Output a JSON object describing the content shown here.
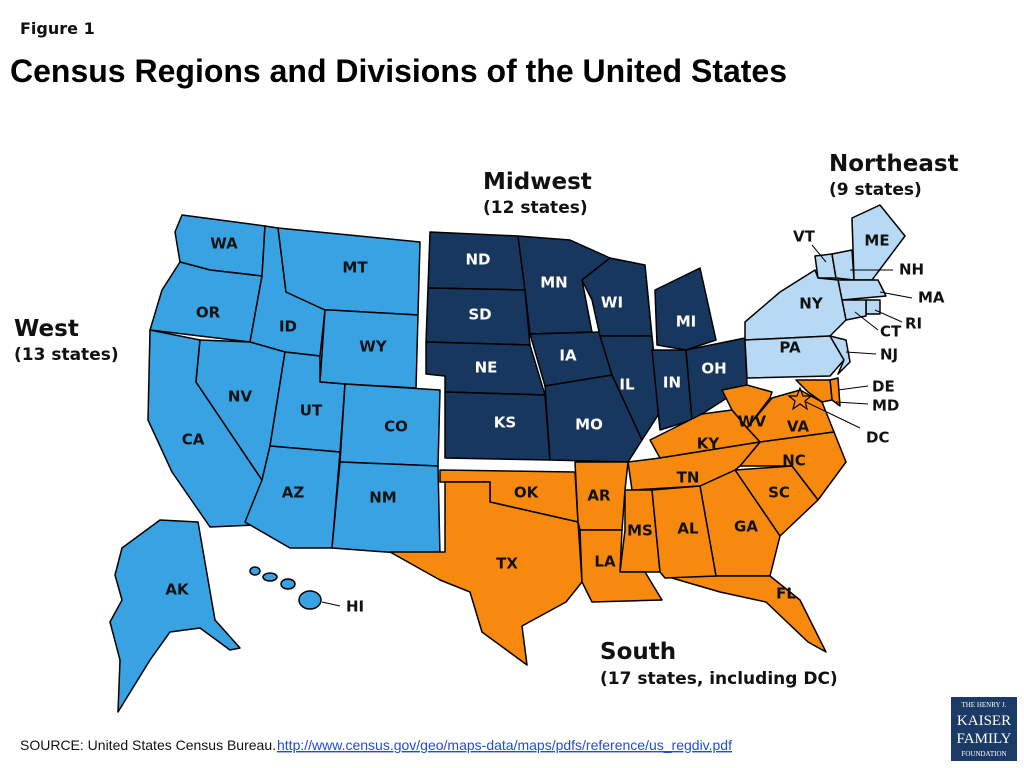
{
  "figure_label": "Figure 1",
  "title": "Census Regions and Divisions of the United States",
  "regions": [
    {
      "name": "West",
      "count": "(13 states)",
      "color": "#38a2e2",
      "states": [
        "WA",
        "OR",
        "CA",
        "ID",
        "NV",
        "MT",
        "WY",
        "UT",
        "CO",
        "AZ",
        "NM",
        "AK",
        "HI"
      ]
    },
    {
      "name": "Midwest",
      "count": "(12 states)",
      "color": "#17375e",
      "states": [
        "ND",
        "SD",
        "NE",
        "KS",
        "MN",
        "IA",
        "MO",
        "WI",
        "IL",
        "IN",
        "MI",
        "OH"
      ]
    },
    {
      "name": "Northeast",
      "count": "(9 states)",
      "color": "#b7d9f3",
      "states": [
        "VT",
        "NH",
        "ME",
        "MA",
        "RI",
        "CT",
        "NY",
        "PA",
        "NJ"
      ]
    },
    {
      "name": "South",
      "count": "(17 states, including DC)",
      "color": "#f7890f",
      "states": [
        "DE",
        "MD",
        "DC",
        "VA",
        "WV",
        "NC",
        "SC",
        "GA",
        "FL",
        "KY",
        "TN",
        "MS",
        "AL",
        "OK",
        "TX",
        "AR",
        "LA"
      ]
    }
  ],
  "source": {
    "text": "SOURCE: United States  Census Bureau.",
    "link": "http://www.census.gov/geo/maps-data/maps/pdfs/reference/us_regdiv.pdf"
  },
  "logo": [
    "THE HENRY J.",
    "KAISER",
    "FAMILY",
    "FOUNDATION"
  ]
}
